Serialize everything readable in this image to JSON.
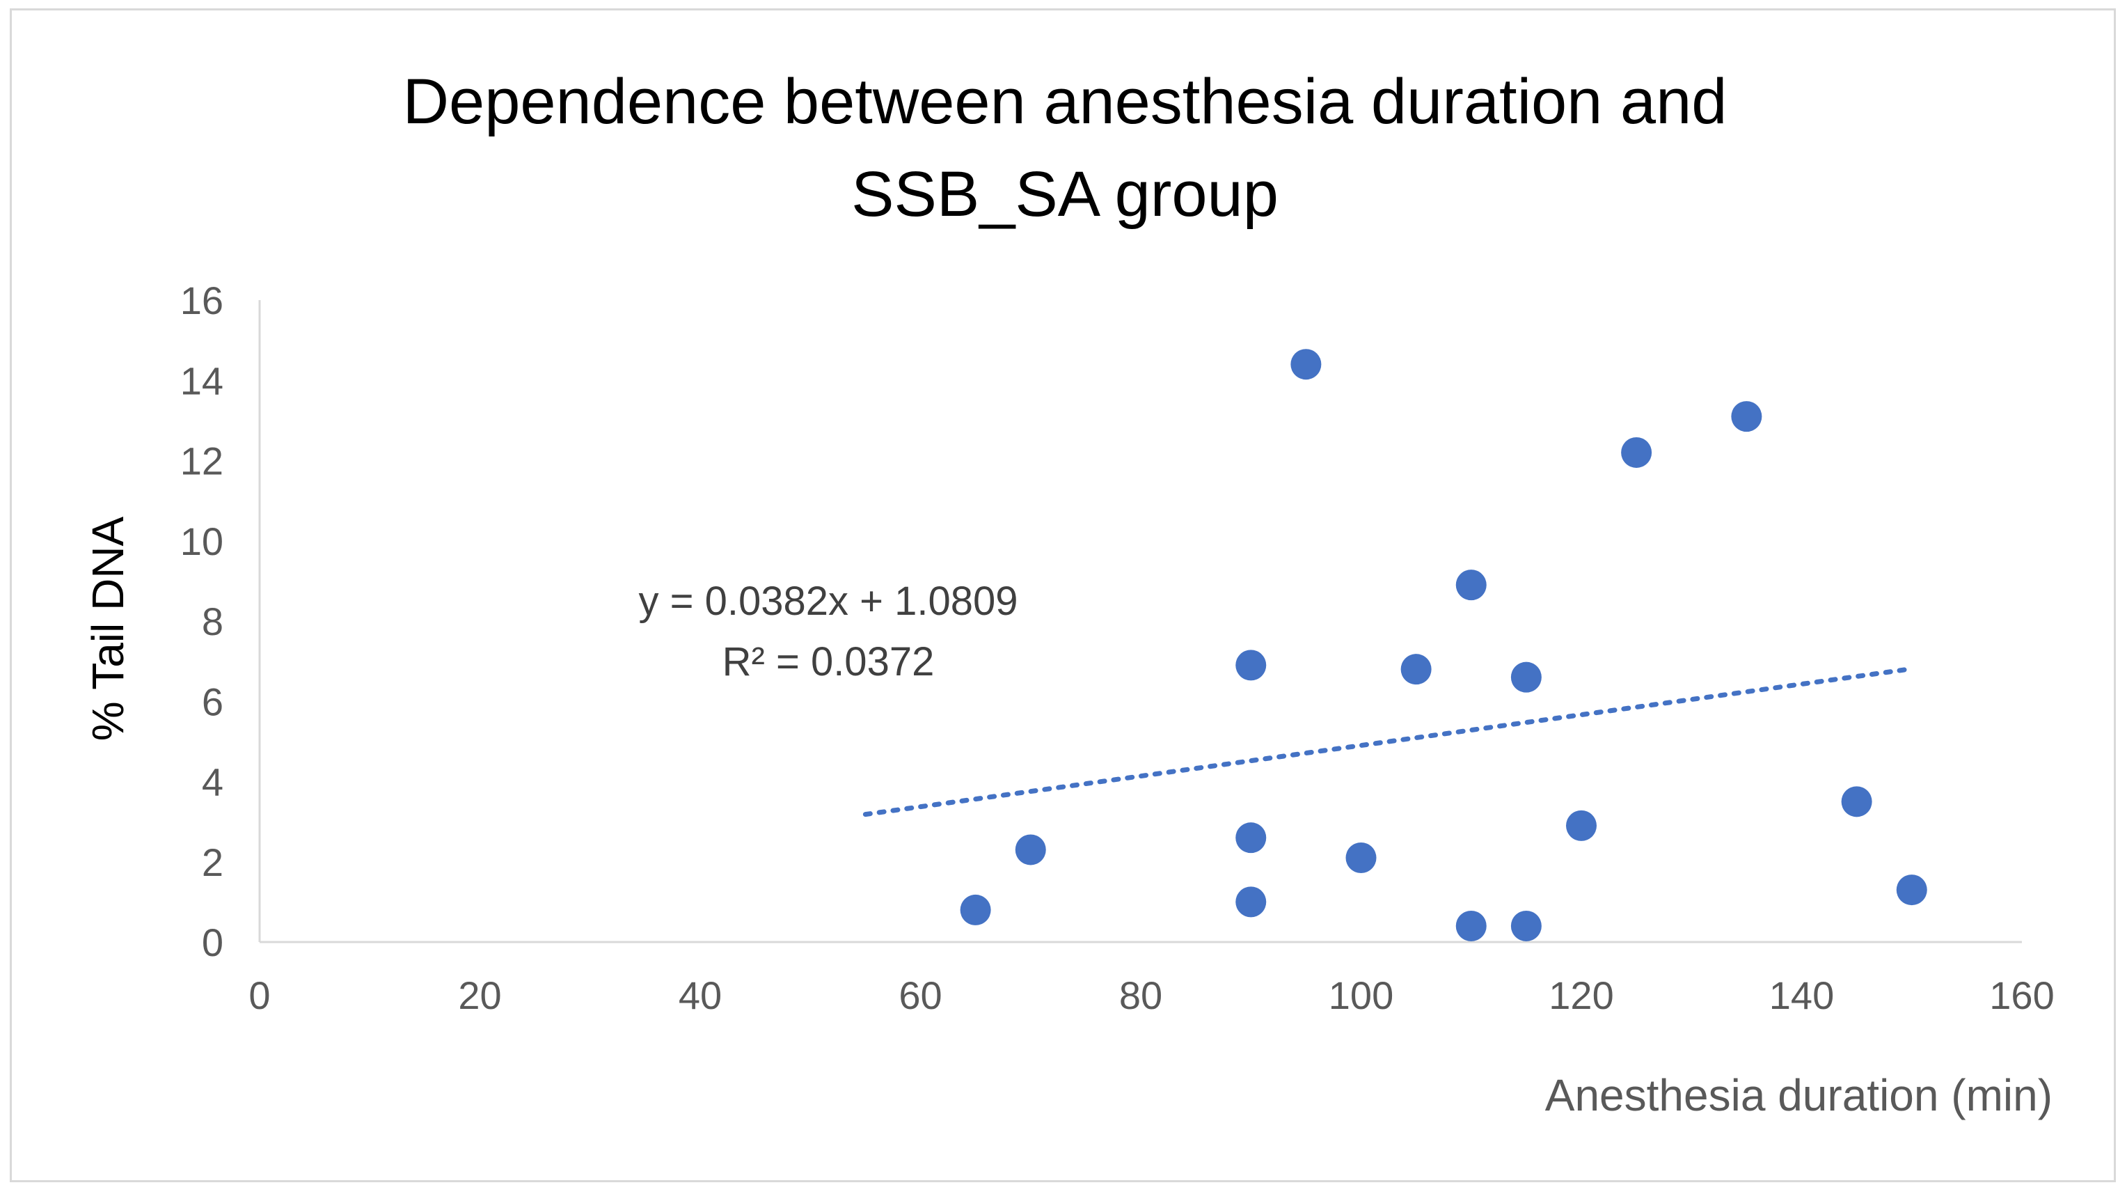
{
  "chart_data": {
    "type": "scatter",
    "title_lines": [
      "Dependence between anesthesia duration and",
      "SSB_SA group"
    ],
    "xlabel": "Anesthesia duration (min)",
    "ylabel": "% Tail DNA",
    "xlim": [
      0,
      160
    ],
    "ylim": [
      0,
      16
    ],
    "x_ticks": [
      0,
      20,
      40,
      60,
      80,
      100,
      120,
      140,
      160
    ],
    "y_ticks": [
      0,
      2,
      4,
      6,
      8,
      10,
      12,
      14,
      16
    ],
    "grid": false,
    "legend": "none",
    "marker_color": "#4472c4",
    "series": [
      {
        "points": [
          {
            "x": 65,
            "y": 0.8
          },
          {
            "x": 70,
            "y": 2.3
          },
          {
            "x": 90,
            "y": 6.9
          },
          {
            "x": 90,
            "y": 2.6
          },
          {
            "x": 90,
            "y": 1.0
          },
          {
            "x": 95,
            "y": 14.4
          },
          {
            "x": 100,
            "y": 2.1
          },
          {
            "x": 105,
            "y": 6.8
          },
          {
            "x": 110,
            "y": 8.9
          },
          {
            "x": 110,
            "y": 0.4
          },
          {
            "x": 115,
            "y": 6.6
          },
          {
            "x": 115,
            "y": 0.4
          },
          {
            "x": 120,
            "y": 2.9
          },
          {
            "x": 125,
            "y": 12.2
          },
          {
            "x": 135,
            "y": 13.1
          },
          {
            "x": 145,
            "y": 3.5
          },
          {
            "x": 150,
            "y": 1.3
          }
        ]
      }
    ],
    "trendline": {
      "type": "linear",
      "slope": 0.0382,
      "intercept": 1.0809,
      "x_range": [
        55,
        150
      ],
      "equation_label": "y = 0.0382x + 1.0809",
      "r2_label": "R² = 0.0372"
    }
  }
}
